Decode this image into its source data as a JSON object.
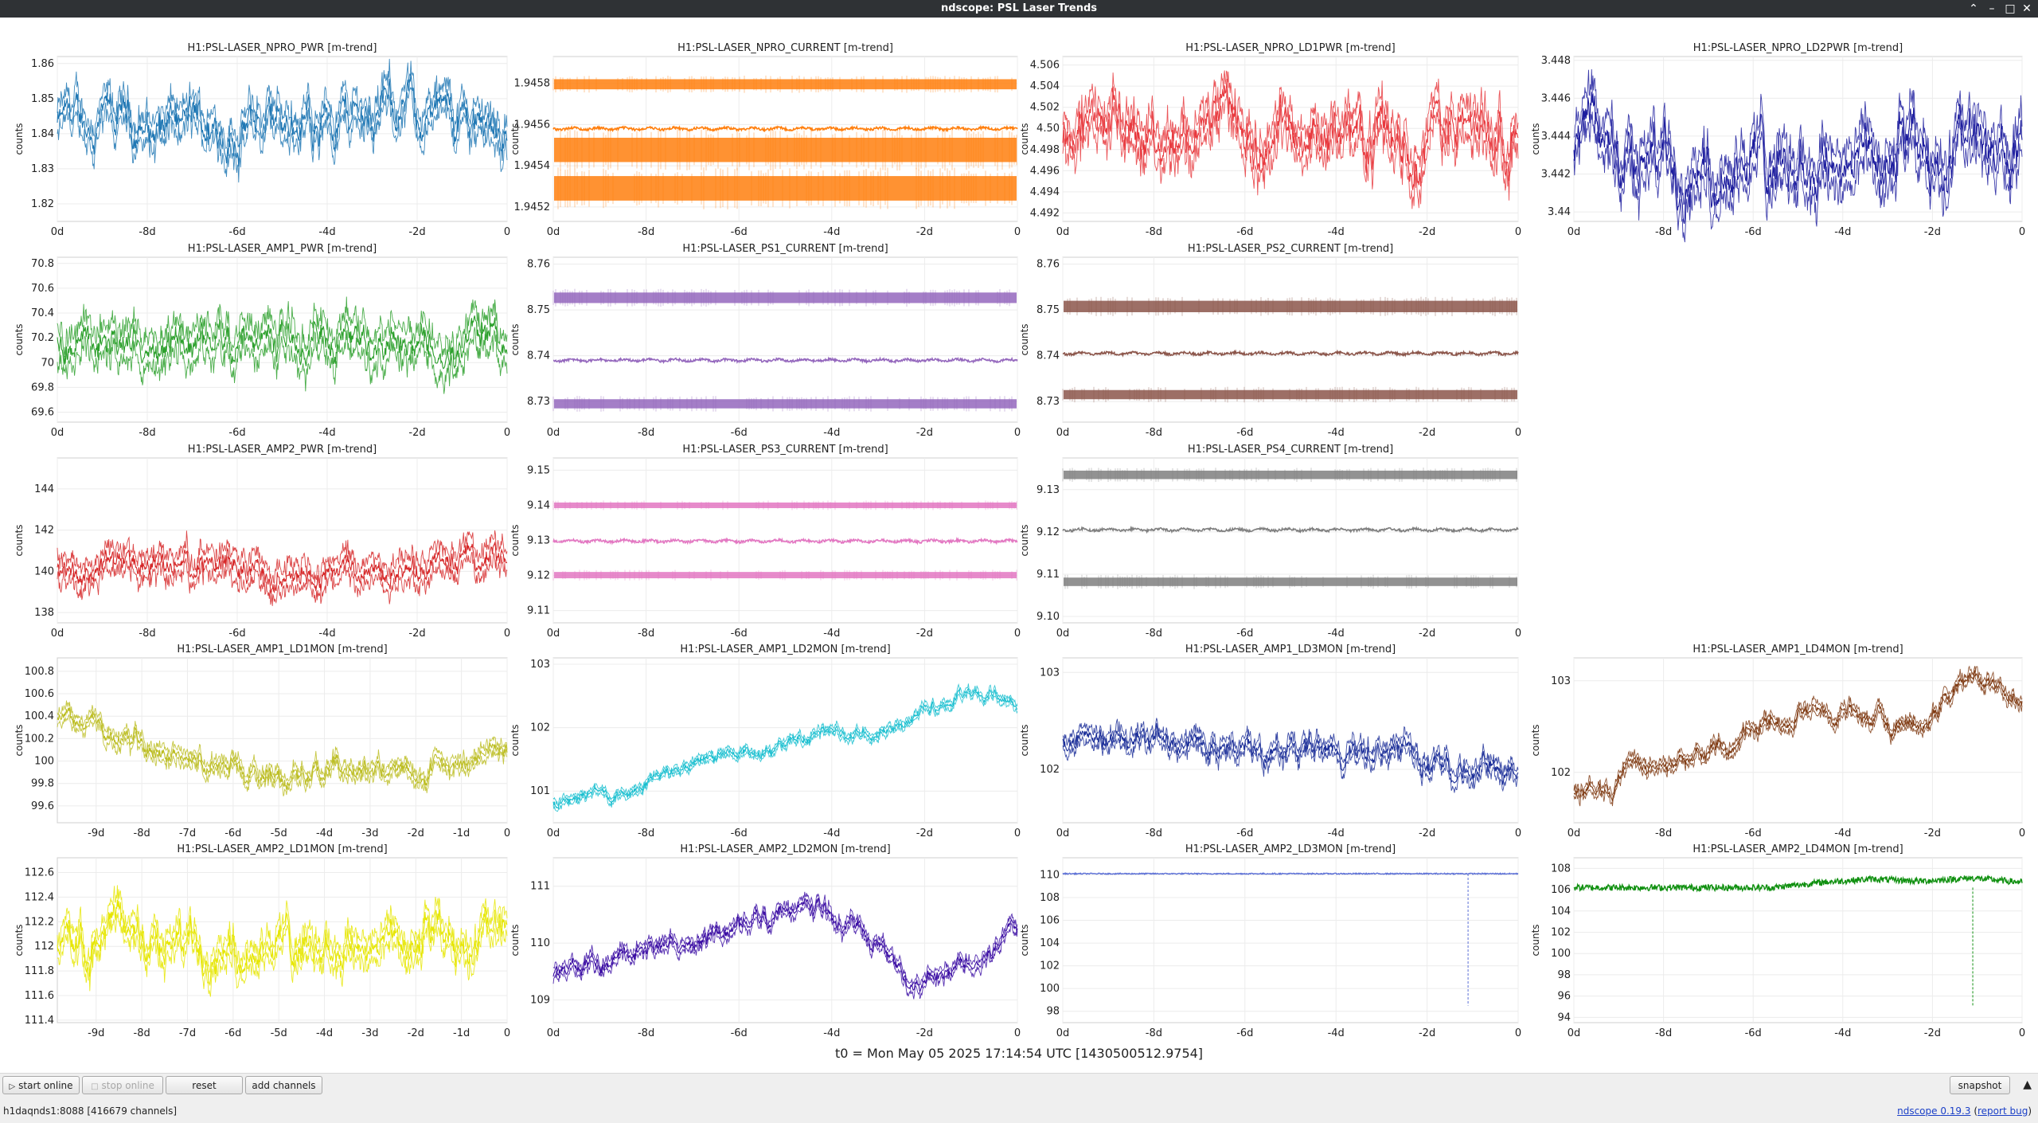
{
  "window": {
    "title": "ndscope: PSL Laser Trends",
    "controls": [
      "chevron-up-icon",
      "minimize-icon",
      "maximize-icon",
      "close-icon"
    ]
  },
  "ylabel": "counts",
  "plots": [
    {
      "title": "H1:PSL-LASER_NPRO_PWR [m-trend]",
      "color": "#1f77b4",
      "col": 0,
      "row": 0,
      "yticks": [
        "1.86",
        "1.85",
        "1.84",
        "1.83",
        "1.82"
      ],
      "ylim": [
        1.815,
        1.862
      ],
      "xticks": [
        "0d",
        "-8d",
        "-6d",
        "-4d",
        "-2d",
        "0"
      ],
      "xrange": 10,
      "style": "noisy",
      "center": 1.842,
      "amp": 0.01,
      "trend": [
        0,
        0,
        0,
        0,
        0,
        0.002,
        0.005,
        0.004,
        0.002,
        0
      ]
    },
    {
      "title": "H1:PSL-LASER_NPRO_CURRENT [m-trend]",
      "color": "#ff7f0e",
      "col": 1,
      "row": 0,
      "yticks": [
        "1.9458",
        "1.9456",
        "1.9454",
        "1.9452"
      ],
      "ylim": [
        1.94513,
        1.94593
      ],
      "xticks": [
        "0d",
        "-8d",
        "-6d",
        "-4d",
        "-2d",
        "0"
      ],
      "xrange": 10,
      "style": "bands",
      "bands": [
        1.94582,
        1.94568,
        1.94552,
        1.94535,
        1.94518
      ],
      "mid": 1.94558
    },
    {
      "title": "H1:PSL-LASER_NPRO_LD1PWR [m-trend]",
      "color": "#e8383d",
      "col": 2,
      "row": 0,
      "yticks": [
        "4.506",
        "4.504",
        "4.502",
        "4.50",
        "4.498",
        "4.496",
        "4.494",
        "4.492"
      ],
      "ylim": [
        4.4912,
        4.5068
      ],
      "xticks": [
        "0d",
        "-8d",
        "-6d",
        "-4d",
        "-2d",
        "0"
      ],
      "xrange": 10,
      "style": "noisy",
      "center": 4.5,
      "amp": 0.004,
      "trend": [
        0,
        0,
        0,
        0,
        0,
        0,
        0,
        0,
        0,
        0
      ]
    },
    {
      "title": "H1:PSL-LASER_NPRO_LD2PWR [m-trend]",
      "color": "#1c1c9e",
      "col": 3,
      "row": 0,
      "yticks": [
        "3.448",
        "3.446",
        "3.444",
        "3.442",
        "3.44"
      ],
      "ylim": [
        3.4395,
        3.4482
      ],
      "xticks": [
        "0d",
        "-8d",
        "-6d",
        "-4d",
        "-2d",
        "0"
      ],
      "xrange": 10,
      "style": "noisy",
      "center": 3.443,
      "amp": 0.0025,
      "trend": [
        0,
        0,
        0,
        0,
        0,
        0,
        0,
        0,
        0,
        0
      ]
    },
    {
      "title": "H1:PSL-LASER_AMP1_PWR [m-trend]",
      "color": "#2ca02c",
      "col": 0,
      "row": 1,
      "yticks": [
        "70.8",
        "70.6",
        "70.4",
        "70.2",
        "70",
        "69.8",
        "69.6"
      ],
      "ylim": [
        69.52,
        70.85
      ],
      "xticks": [
        "0d",
        "-8d",
        "-6d",
        "-4d",
        "-2d",
        "0"
      ],
      "xrange": 10,
      "style": "dense",
      "center": 70.2,
      "amp": 0.22,
      "trend": [
        0,
        0,
        0,
        0,
        0,
        0,
        0,
        0,
        0,
        0.05
      ]
    },
    {
      "title": "H1:PSL-LASER_PS1_CURRENT [m-trend]",
      "color": "#9467bd",
      "col": 1,
      "row": 1,
      "yticks": [
        "8.76",
        "8.75",
        "8.74",
        "8.73"
      ],
      "ylim": [
        8.7255,
        8.7615
      ],
      "xticks": [
        "0d",
        "-8d",
        "-6d",
        "-4d",
        "-2d",
        "0"
      ],
      "xrange": 10,
      "style": "bands",
      "bands": [
        8.7538,
        8.7515,
        8.7305,
        8.7285
      ],
      "mid": 8.739
    },
    {
      "title": "H1:PSL-LASER_PS2_CURRENT [m-trend]",
      "color": "#8c564b",
      "col": 2,
      "row": 1,
      "yticks": [
        "8.76",
        "8.75",
        "8.74",
        "8.73"
      ],
      "ylim": [
        8.7255,
        8.7615
      ],
      "xticks": [
        "0d",
        "-8d",
        "-6d",
        "-4d",
        "-2d",
        "0"
      ],
      "xrange": 10,
      "style": "bands",
      "bands": [
        8.752,
        8.7495,
        8.7325,
        8.7305
      ],
      "mid": 8.7405
    },
    {
      "title": "H1:PSL-LASER_AMP2_PWR [m-trend]",
      "color": "#d62728",
      "col": 0,
      "row": 2,
      "yticks": [
        "144",
        "142",
        "140",
        "138"
      ],
      "ylim": [
        137.5,
        145.5
      ],
      "xticks": [
        "0d",
        "-8d",
        "-6d",
        "-4d",
        "-2d",
        "0"
      ],
      "xrange": 10,
      "style": "dense",
      "center": 140.1,
      "amp": 1.0,
      "trend": [
        0,
        0,
        0,
        0,
        0,
        0,
        0,
        0,
        0.3,
        0.5
      ]
    },
    {
      "title": "H1:PSL-LASER_PS3_CURRENT [m-trend]",
      "color": "#e377c2",
      "col": 1,
      "row": 2,
      "yticks": [
        "9.15",
        "9.14",
        "9.13",
        "9.12",
        "9.11"
      ],
      "ylim": [
        9.1065,
        9.1535
      ],
      "xticks": [
        "0d",
        "-8d",
        "-6d",
        "-4d",
        "-2d",
        "0"
      ],
      "xrange": 10,
      "style": "bands",
      "bands": [
        9.1408,
        9.1392,
        9.121,
        9.1192
      ],
      "mid": 9.1298
    },
    {
      "title": "H1:PSL-LASER_PS4_CURRENT [m-trend]",
      "color": "#7f7f7f",
      "col": 2,
      "row": 2,
      "yticks": [
        "9.13",
        "9.12",
        "9.11",
        "9.10"
      ],
      "ylim": [
        9.0985,
        9.1375
      ],
      "xticks": [
        "0d",
        "-8d",
        "-6d",
        "-4d",
        "-2d",
        "0"
      ],
      "xrange": 10,
      "style": "bands",
      "bands": [
        9.1345,
        9.1325,
        9.1092,
        9.1072
      ],
      "mid": 9.1205
    },
    {
      "title": "H1:PSL-LASER_AMP1_LD1MON [m-trend]",
      "color": "#bcbd22",
      "col": 0,
      "row": 3,
      "yticks": [
        "100.8",
        "100.6",
        "100.4",
        "100.2",
        "100",
        "99.8",
        "99.6"
      ],
      "ylim": [
        99.45,
        100.92
      ],
      "xticks": [
        "-9d",
        "-8d",
        "-7d",
        "-6d",
        "-5d",
        "-4d",
        "-3d",
        "-2d",
        "-1d",
        "0"
      ],
      "xrange": 10,
      "style": "noisy",
      "center": 100.0,
      "amp": 0.15,
      "trend": [
        0.35,
        0.2,
        0.1,
        -0.05,
        -0.1,
        -0.1,
        -0.15,
        -0.1,
        -0.1,
        0.15
      ]
    },
    {
      "title": "H1:PSL-LASER_AMP1_LD2MON [m-trend]",
      "color": "#17becf",
      "col": 1,
      "row": 3,
      "yticks": [
        "103",
        "102",
        "101"
      ],
      "ylim": [
        100.5,
        103.1
      ],
      "xticks": [
        "0d",
        "-8d",
        "-6d",
        "-4d",
        "-2d",
        "0"
      ],
      "xrange": 10,
      "style": "noisy",
      "center": 101.8,
      "amp": 0.15,
      "trend": [
        -1.0,
        -0.85,
        -0.6,
        -0.35,
        -0.15,
        0.05,
        0.15,
        0.4,
        0.75,
        0.65
      ]
    },
    {
      "title": "H1:PSL-LASER_AMP1_LD3MON [m-trend]",
      "color": "#1c2f99",
      "col": 2,
      "row": 3,
      "yticks": [
        "103",
        "102"
      ],
      "ylim": [
        101.45,
        103.15
      ],
      "xticks": [
        "0d",
        "-8d",
        "-6d",
        "-4d",
        "-2d",
        "0"
      ],
      "xrange": 10,
      "style": "noisy",
      "center": 102.2,
      "amp": 0.2,
      "trend": [
        0.15,
        0.15,
        0.15,
        0.0,
        -0.05,
        -0.05,
        -0.05,
        -0.05,
        -0.15,
        -0.25
      ]
    },
    {
      "title": "H1:PSL-LASER_AMP1_LD4MON [m-trend]",
      "color": "#7f3a12",
      "col": 3,
      "row": 3,
      "yticks": [
        "103",
        "102"
      ],
      "ylim": [
        101.45,
        103.25
      ],
      "xticks": [
        "0d",
        "-8d",
        "-6d",
        "-4d",
        "-2d",
        "0"
      ],
      "xrange": 10,
      "style": "noisy",
      "center": 102.3,
      "amp": 0.15,
      "trend": [
        -0.5,
        -0.35,
        -0.2,
        0.0,
        0.3,
        0.4,
        0.25,
        0.25,
        0.75,
        0.45
      ]
    },
    {
      "title": "H1:PSL-LASER_AMP2_LD1MON [m-trend]",
      "color": "#e6e600",
      "col": 0,
      "row": 4,
      "yticks": [
        "112.6",
        "112.4",
        "112.2",
        "112",
        "111.8",
        "111.6",
        "111.4"
      ],
      "ylim": [
        111.38,
        112.72
      ],
      "xticks": [
        "-9d",
        "-8d",
        "-7d",
        "-6d",
        "-5d",
        "-4d",
        "-3d",
        "-2d",
        "-1d",
        "0"
      ],
      "xrange": 10,
      "style": "noisy",
      "center": 112.05,
      "amp": 0.25,
      "trend": [
        0,
        0,
        0,
        0,
        0,
        0,
        0,
        0,
        0,
        0
      ]
    },
    {
      "title": "H1:PSL-LASER_AMP2_LD2MON [m-trend]",
      "color": "#3a0ca3",
      "col": 1,
      "row": 4,
      "yticks": [
        "111",
        "110",
        "109"
      ],
      "ylim": [
        108.6,
        111.5
      ],
      "xticks": [
        "0d",
        "-8d",
        "-6d",
        "-4d",
        "-2d",
        "0"
      ],
      "xrange": 10,
      "style": "noisy",
      "center": 110.1,
      "amp": 0.25,
      "trend": [
        -0.6,
        -0.4,
        -0.1,
        0.05,
        0.35,
        0.6,
        0.15,
        -0.8,
        -0.4,
        0.2
      ]
    },
    {
      "title": "H1:PSL-LASER_AMP2_LD3MON [m-trend]",
      "color": "#5b6fd6",
      "col": 2,
      "row": 4,
      "yticks": [
        "110",
        "108",
        "106",
        "104",
        "102",
        "100",
        "98"
      ],
      "ylim": [
        97.0,
        111.5
      ],
      "xticks": [
        "0d",
        "-8d",
        "-6d",
        "-4d",
        "-2d",
        "0"
      ],
      "xrange": 10,
      "style": "flat",
      "center": 110.1,
      "amp": 0.05,
      "dip": [
        8.9,
        98.5
      ]
    },
    {
      "title": "H1:PSL-LASER_AMP2_LD4MON [m-trend]",
      "color": "#109010",
      "col": 3,
      "row": 4,
      "yticks": [
        "108",
        "106",
        "104",
        "102",
        "100",
        "98",
        "96",
        "94"
      ],
      "ylim": [
        93.5,
        109.0
      ],
      "xticks": [
        "0d",
        "-8d",
        "-6d",
        "-4d",
        "-2d",
        "0"
      ],
      "xrange": 10,
      "style": "flat",
      "center": 106.2,
      "amp": 0.3,
      "trend": [
        0,
        0,
        0,
        0,
        0,
        0.5,
        0.8,
        0.6,
        0.9,
        0.5
      ],
      "dip": [
        8.9,
        95.0
      ]
    }
  ],
  "t0": "t0 = Mon May 05 2025 17:14:54 UTC [1430500512.9754]",
  "buttons": {
    "start_online": "start online",
    "stop_online": "stop online",
    "reset": "reset",
    "add_channels": "add channels",
    "snapshot": "snapshot"
  },
  "status": "h1daqnds1:8088  [416679 channels]",
  "version": {
    "prefix": "ndscope ",
    "version": "0.19.3",
    "report": "report bug"
  }
}
